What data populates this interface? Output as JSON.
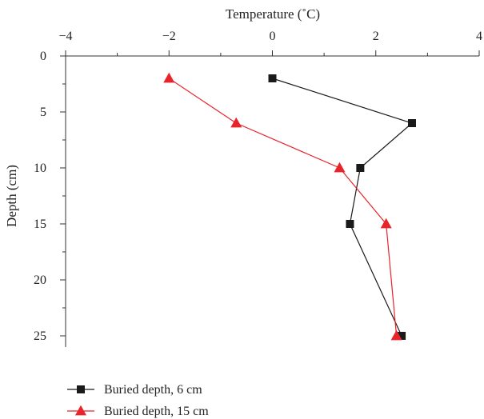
{
  "chart_data": {
    "type": "line",
    "title": "",
    "xlabel": "Temperature (˚C)",
    "ylabel": "Depth (cm)",
    "x_axis_position": "top",
    "y_axis_inverted": true,
    "xlim": [
      -4,
      4
    ],
    "ylim": [
      0,
      26
    ],
    "x_ticks": [
      -4,
      -2,
      0,
      2,
      4
    ],
    "x_tick_labels": [
      "−4",
      "−2",
      "0",
      "2",
      "4"
    ],
    "x_minor_ticks": [
      -3,
      -1,
      1,
      3
    ],
    "y_ticks": [
      0,
      5,
      10,
      15,
      20,
      25
    ],
    "y_tick_labels": [
      "0",
      "5",
      "10",
      "15",
      "20",
      "25"
    ],
    "y_minor_ticks": [
      2.5,
      7.5,
      12.5,
      17.5,
      22.5
    ],
    "grid": false,
    "legend_position": "bottom-left",
    "series": [
      {
        "name": "Buried depth, 6 cm",
        "marker": "square",
        "color": "#1a1a1a",
        "points": [
          {
            "x": 0.0,
            "y": 2
          },
          {
            "x": 2.7,
            "y": 6
          },
          {
            "x": 1.7,
            "y": 10
          },
          {
            "x": 1.5,
            "y": 15
          },
          {
            "x": 2.5,
            "y": 25
          }
        ]
      },
      {
        "name": "Buried depth, 15 cm",
        "marker": "triangle",
        "color": "#e8232a",
        "points": [
          {
            "x": -2.0,
            "y": 2
          },
          {
            "x": -0.7,
            "y": 6
          },
          {
            "x": 1.3,
            "y": 10
          },
          {
            "x": 2.2,
            "y": 15
          },
          {
            "x": 2.4,
            "y": 25
          }
        ]
      }
    ]
  }
}
